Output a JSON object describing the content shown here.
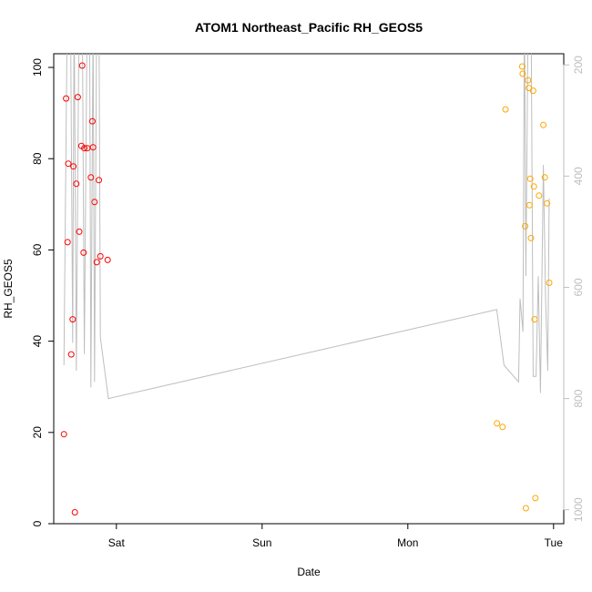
{
  "chart_data": {
    "type": "scatter",
    "title": "ATOM1 Northeast_Pacific RH_GEOS5",
    "xlabel": "Date",
    "ylabel": "RH_GEOS5",
    "ylim": [
      0,
      103
    ],
    "x_axis": {
      "unit": "days",
      "range": [
        -0.43,
        3.07
      ],
      "ticks": [
        {
          "value": 0,
          "label": "Sat"
        },
        {
          "value": 1,
          "label": "Sun"
        },
        {
          "value": 2,
          "label": "Mon"
        },
        {
          "value": 3,
          "label": "Tue"
        }
      ]
    },
    "y_ticks": [
      0,
      20,
      40,
      60,
      80,
      100
    ],
    "right_axis": {
      "label": "",
      "color": "#bebebe",
      "direction": "inverted",
      "range": [
        1025,
        180
      ],
      "ticks": [
        200,
        400,
        600,
        800,
        1000
      ]
    },
    "grid": false,
    "series": [
      {
        "color": "#ff0000",
        "marker": "open-circle",
        "points": [
          {
            "x": -0.36,
            "y": 19.6
          },
          {
            "x": -0.345,
            "y": 93.2
          },
          {
            "x": -0.335,
            "y": 61.7
          },
          {
            "x": -0.33,
            "y": 78.9
          },
          {
            "x": -0.31,
            "y": 37.1
          },
          {
            "x": -0.3,
            "y": 44.8
          },
          {
            "x": -0.295,
            "y": 78.3
          },
          {
            "x": -0.285,
            "y": 2.5
          },
          {
            "x": -0.275,
            "y": 74.5
          },
          {
            "x": -0.265,
            "y": 93.5
          },
          {
            "x": -0.255,
            "y": 64.0
          },
          {
            "x": -0.24,
            "y": 82.8
          },
          {
            "x": -0.235,
            "y": 100.4
          },
          {
            "x": -0.225,
            "y": 59.4
          },
          {
            "x": -0.22,
            "y": 82.3
          },
          {
            "x": -0.2,
            "y": 82.3
          },
          {
            "x": -0.175,
            "y": 75.9
          },
          {
            "x": -0.165,
            "y": 88.2
          },
          {
            "x": -0.16,
            "y": 82.5
          },
          {
            "x": -0.15,
            "y": 70.5
          },
          {
            "x": -0.135,
            "y": 57.3
          },
          {
            "x": -0.12,
            "y": 75.3
          },
          {
            "x": -0.11,
            "y": 58.6
          },
          {
            "x": -0.06,
            "y": 57.8
          }
        ]
      },
      {
        "color": "#ffa500",
        "marker": "open-circle",
        "points": [
          {
            "x": 2.612,
            "y": 22.0
          },
          {
            "x": 2.65,
            "y": 21.2
          },
          {
            "x": 2.67,
            "y": 90.8
          },
          {
            "x": 2.785,
            "y": 100.2
          },
          {
            "x": 2.788,
            "y": 98.6
          },
          {
            "x": 2.805,
            "y": 65.2
          },
          {
            "x": 2.81,
            "y": 3.4
          },
          {
            "x": 2.825,
            "y": 97.2
          },
          {
            "x": 2.83,
            "y": 95.5
          },
          {
            "x": 2.835,
            "y": 69.8
          },
          {
            "x": 2.84,
            "y": 75.6
          },
          {
            "x": 2.845,
            "y": 62.6
          },
          {
            "x": 2.86,
            "y": 94.9
          },
          {
            "x": 2.865,
            "y": 73.9
          },
          {
            "x": 2.87,
            "y": 44.8
          },
          {
            "x": 2.875,
            "y": 5.6
          },
          {
            "x": 2.9,
            "y": 71.9
          },
          {
            "x": 2.93,
            "y": 87.4
          },
          {
            "x": 2.94,
            "y": 75.9
          },
          {
            "x": 2.955,
            "y": 70.2
          },
          {
            "x": 2.97,
            "y": 52.8
          }
        ]
      },
      {
        "type": "line",
        "color": "#bebebe",
        "axis": "right",
        "points": [
          {
            "x": -0.36,
            "y": 740
          },
          {
            "x": -0.335,
            "y": 40
          },
          {
            "x": -0.315,
            "y": 90
          },
          {
            "x": -0.3,
            "y": 700
          },
          {
            "x": -0.29,
            "y": 90
          },
          {
            "x": -0.275,
            "y": 750
          },
          {
            "x": -0.255,
            "y": 60
          },
          {
            "x": -0.235,
            "y": 60
          },
          {
            "x": -0.22,
            "y": 720
          },
          {
            "x": -0.2,
            "y": 80
          },
          {
            "x": -0.185,
            "y": 40
          },
          {
            "x": -0.175,
            "y": 780
          },
          {
            "x": -0.16,
            "y": 120
          },
          {
            "x": -0.15,
            "y": 770
          },
          {
            "x": -0.135,
            "y": 90
          },
          {
            "x": -0.12,
            "y": 70
          },
          {
            "x": -0.11,
            "y": 690
          },
          {
            "x": -0.055,
            "y": 800
          },
          {
            "x": 2.61,
            "y": 640
          },
          {
            "x": 2.66,
            "y": 740
          },
          {
            "x": 2.76,
            "y": 770
          },
          {
            "x": 2.77,
            "y": 620
          },
          {
            "x": 2.79,
            "y": 680
          },
          {
            "x": 2.8,
            "y": 90
          },
          {
            "x": 2.81,
            "y": 580
          },
          {
            "x": 2.825,
            "y": 120
          },
          {
            "x": 2.835,
            "y": 40
          },
          {
            "x": 2.845,
            "y": 60
          },
          {
            "x": 2.86,
            "y": 760
          },
          {
            "x": 2.88,
            "y": 760
          },
          {
            "x": 2.895,
            "y": 580
          },
          {
            "x": 2.91,
            "y": 790
          },
          {
            "x": 2.93,
            "y": 380
          },
          {
            "x": 2.945,
            "y": 620
          },
          {
            "x": 2.96,
            "y": 750
          },
          {
            "x": 2.97,
            "y": 440
          }
        ]
      }
    ]
  }
}
